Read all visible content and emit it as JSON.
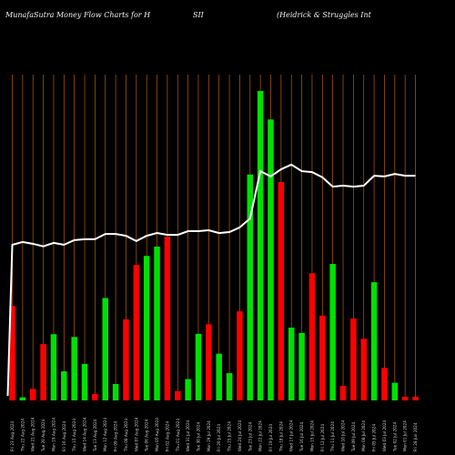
{
  "header": {
    "title_left": "MunafaSutra  Money Flow  Charts for H",
    "title_mid": "SII",
    "title_right": "(Heidrick & Struggles Int"
  },
  "chart_data": {
    "type": "bar",
    "title": "MunafaSutra  Money Flow  Charts for HSII (Heidrick & Struggles Int",
    "xlabel": "",
    "ylabel": "",
    "ylim": [
      0,
      100
    ],
    "grid": "vertical",
    "categories": [
      "Fri 23 Aug 2024",
      "Thu 22 Aug 2024",
      "Wed 21 Aug 2024",
      "Tue 20 Aug 2024",
      "Mon 19 Aug 2024",
      "Fri 16 Aug 2024",
      "Thu 15 Aug 2024",
      "Wed 14 Aug 2024",
      "Tue 13 Aug 2024",
      "Mon 12 Aug 2024",
      "Fri 09 Aug 2024",
      "Thu 08 Aug 2024",
      "Wed 07 Aug 2024",
      "Tue 06 Aug 2024",
      "Mon 05 Aug 2024",
      "Fri 02 Aug 2024",
      "Thu 01 Aug 2024",
      "Wed 31 Jul 2024",
      "Tue 30 Jul 2024",
      "Mon 29 Jul 2024",
      "Fri 26 Jul 2024",
      "Thu 25 Jul 2024",
      "Wed 24 Jul 2024",
      "Tue 23 Jul 2024",
      "Mon 22 Jul 2024",
      "Fri 19 Jul 2024",
      "Thu 18 Jul 2024",
      "Wed 17 Jul 2024",
      "Tue 16 Jul 2024",
      "Mon 15 Jul 2024",
      "Fri 12 Jul 2024",
      "Thu 11 Jul 2024",
      "Wed 10 Jul 2024",
      "Tue 09 Jul 2024",
      "Mon 08 Jul 2024",
      "Fri 05 Jul 2024",
      "Wed 03 Jul 2024",
      "Tue 02 Jul 2024",
      "Mon 01 Jul 2024",
      "Fri 28 Jun 2024"
    ],
    "bar_colors": [
      "red",
      "green",
      "red",
      "red",
      "green",
      "green",
      "green",
      "green",
      "red",
      "green",
      "green",
      "red",
      "red",
      "green",
      "green",
      "red",
      "red",
      "green",
      "green",
      "red",
      "green",
      "green",
      "red",
      "green",
      "green",
      "green",
      "red",
      "green",
      "green",
      "red",
      "red",
      "green",
      "red",
      "red",
      "red",
      "green",
      "red",
      "green",
      "red",
      "red"
    ],
    "bar_values": [
      30.5,
      1,
      3.7,
      18.2,
      21.4,
      9.4,
      20.5,
      11.8,
      2.1,
      33.1,
      5.3,
      26.2,
      43.8,
      46.7,
      49.7,
      52.9,
      3,
      6.9,
      21.5,
      24.6,
      15.1,
      8.8,
      28.8,
      73,
      100,
      90.8,
      70.6,
      23.5,
      21.8,
      41.1,
      27.4,
      44.1,
      4.7,
      26.5,
      19.9,
      38.2,
      10.5,
      5.7,
      1.2,
      1.2
    ],
    "line_values": [
      50.3,
      51.2,
      50.6,
      49.8,
      50.9,
      50.3,
      51.8,
      52.1,
      52.1,
      53.8,
      53.8,
      53.2,
      51.5,
      53.2,
      54.1,
      53.5,
      53.5,
      54.7,
      54.7,
      55,
      54.1,
      54.4,
      55.9,
      58.8,
      74.1,
      72.4,
      74.7,
      76.2,
      74.1,
      73.8,
      72.1,
      69.1,
      69.4,
      69.1,
      69.4,
      72.6,
      72.4,
      73.2,
      72.6,
      72.6
    ],
    "colors": {
      "green": "#00e000",
      "red": "#ff0000",
      "line": "#ffffff",
      "grid": "#b8600a",
      "background": "#000000"
    }
  }
}
